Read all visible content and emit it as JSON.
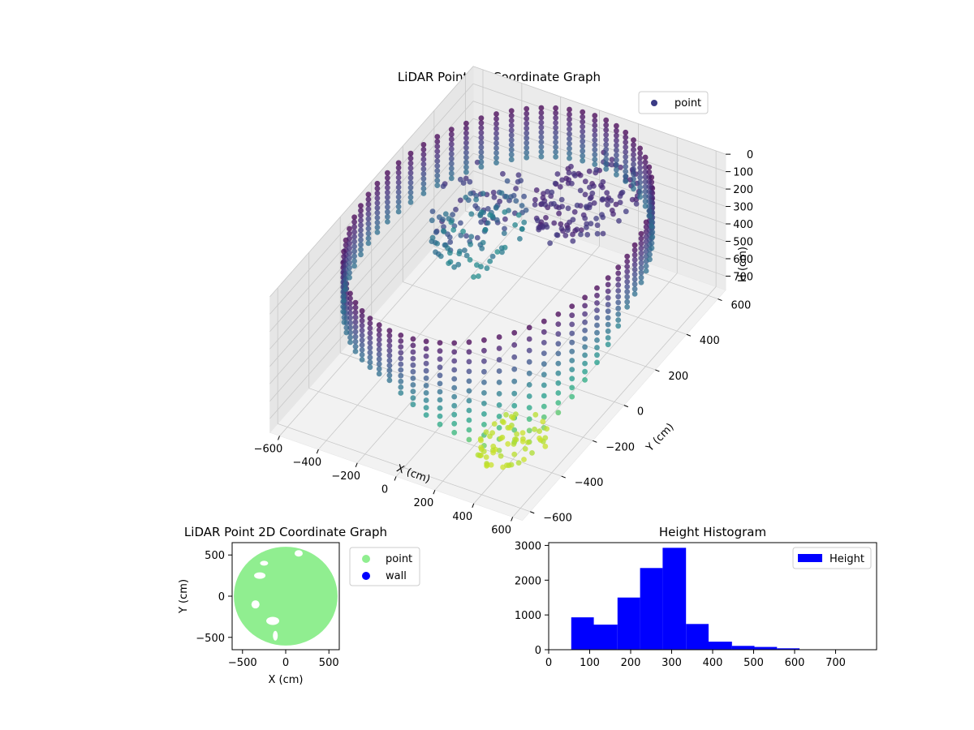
{
  "figure": {
    "background": "#ffffff"
  },
  "chart_data": [
    {
      "id": "lidar-3d",
      "type": "scatter",
      "projection": "3d",
      "title": "LiDAR Point 3D Coordinate Graph",
      "xlabel": "X (cm)",
      "ylabel": "Y (cm)",
      "zlabel": "H (cm)",
      "xlim": [
        -650,
        650
      ],
      "ylim": [
        -650,
        650
      ],
      "zlim": [
        0,
        780
      ],
      "z_inverted": true,
      "x_ticks": [
        "−600",
        "−400",
        "−200",
        "0",
        "200",
        "400",
        "600"
      ],
      "y_ticks": [
        "−600",
        "−400",
        "−200",
        "0",
        "200",
        "400",
        "600"
      ],
      "z_ticks": [
        "0",
        "100",
        "200",
        "300",
        "400",
        "500",
        "600",
        "700"
      ],
      "grid": true,
      "colormap": "viridis",
      "color_by": "height",
      "legend": {
        "position": "top-right",
        "entries": [
          {
            "label": "point",
            "color": "#440154"
          }
        ]
      },
      "clouds": {
        "wall": {
          "radius": 620,
          "h_min": 0,
          "h_max": 280
        },
        "room_objects": [
          {
            "cx": -250,
            "cy": 180,
            "r": 200,
            "h_min": 100,
            "h_max": 380
          },
          {
            "cx": 200,
            "cy": 320,
            "r": 220,
            "h_min": 60,
            "h_max": 140
          }
        ],
        "floor_patch": {
          "cx": 380,
          "cy": -380,
          "h": 720
        }
      }
    },
    {
      "id": "lidar-2d",
      "type": "scatter",
      "title": "LiDAR Point 2D Coordinate Graph",
      "xlabel": "X (cm)",
      "ylabel": "Y (cm)",
      "xlim": [
        -620,
        620
      ],
      "ylim": [
        -650,
        650
      ],
      "x_ticks": [
        -500,
        0,
        500
      ],
      "y_ticks": [
        -500,
        0,
        500
      ],
      "x_tick_labels": [
        "−500",
        "0",
        "500"
      ],
      "y_tick_labels": [
        "−500",
        "0",
        "500"
      ],
      "series": [
        {
          "name": "point",
          "color": "#90ee90",
          "shape": "disk",
          "center": [
            0,
            0
          ],
          "radius": 600
        },
        {
          "name": "wall",
          "color": "#0000ff",
          "points": []
        }
      ],
      "legend": {
        "position": "outside-right",
        "entries": [
          "point",
          "wall"
        ]
      }
    },
    {
      "id": "height-hist",
      "type": "bar",
      "title": "Height Histogram",
      "xlim": [
        0,
        800
      ],
      "ylim": [
        0,
        3080
      ],
      "x_ticks": [
        0,
        100,
        200,
        300,
        400,
        500,
        600,
        700
      ],
      "y_ticks": [
        0,
        1000,
        2000,
        3000
      ],
      "bins": [
        {
          "x0": 55,
          "x1": 110,
          "count": 930
        },
        {
          "x0": 110,
          "x1": 168,
          "count": 720
        },
        {
          "x0": 168,
          "x1": 223,
          "count": 1500
        },
        {
          "x0": 223,
          "x1": 278,
          "count": 2350
        },
        {
          "x0": 278,
          "x1": 335,
          "count": 2930
        },
        {
          "x0": 335,
          "x1": 390,
          "count": 740
        },
        {
          "x0": 390,
          "x1": 447,
          "count": 230
        },
        {
          "x0": 447,
          "x1": 502,
          "count": 110
        },
        {
          "x0": 502,
          "x1": 557,
          "count": 80
        },
        {
          "x0": 557,
          "x1": 612,
          "count": 40
        },
        {
          "x0": 612,
          "x1": 667,
          "count": 12
        },
        {
          "x0": 667,
          "x1": 722,
          "count": 5
        }
      ],
      "color": "#0000ff",
      "legend": {
        "position": "top-right",
        "entries": [
          {
            "label": "Height",
            "color": "#0000ff"
          }
        ]
      }
    }
  ]
}
